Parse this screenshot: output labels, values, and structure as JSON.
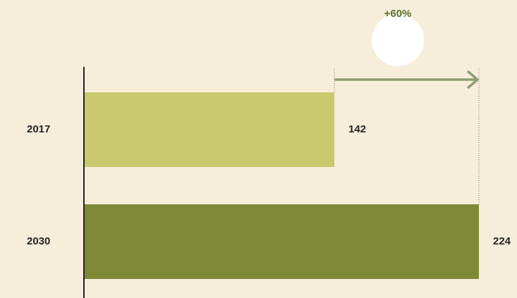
{
  "chart_data": {
    "type": "bar",
    "orientation": "horizontal",
    "categories": [
      "2017",
      "2030"
    ],
    "values": [
      142,
      224
    ],
    "colors": [
      "#c9c96e",
      "#7f8a37"
    ],
    "xlim": [
      0,
      224
    ],
    "annotation": "+60%",
    "annotation_color": "#5b7230",
    "arrow_color": "#8c9f72"
  }
}
